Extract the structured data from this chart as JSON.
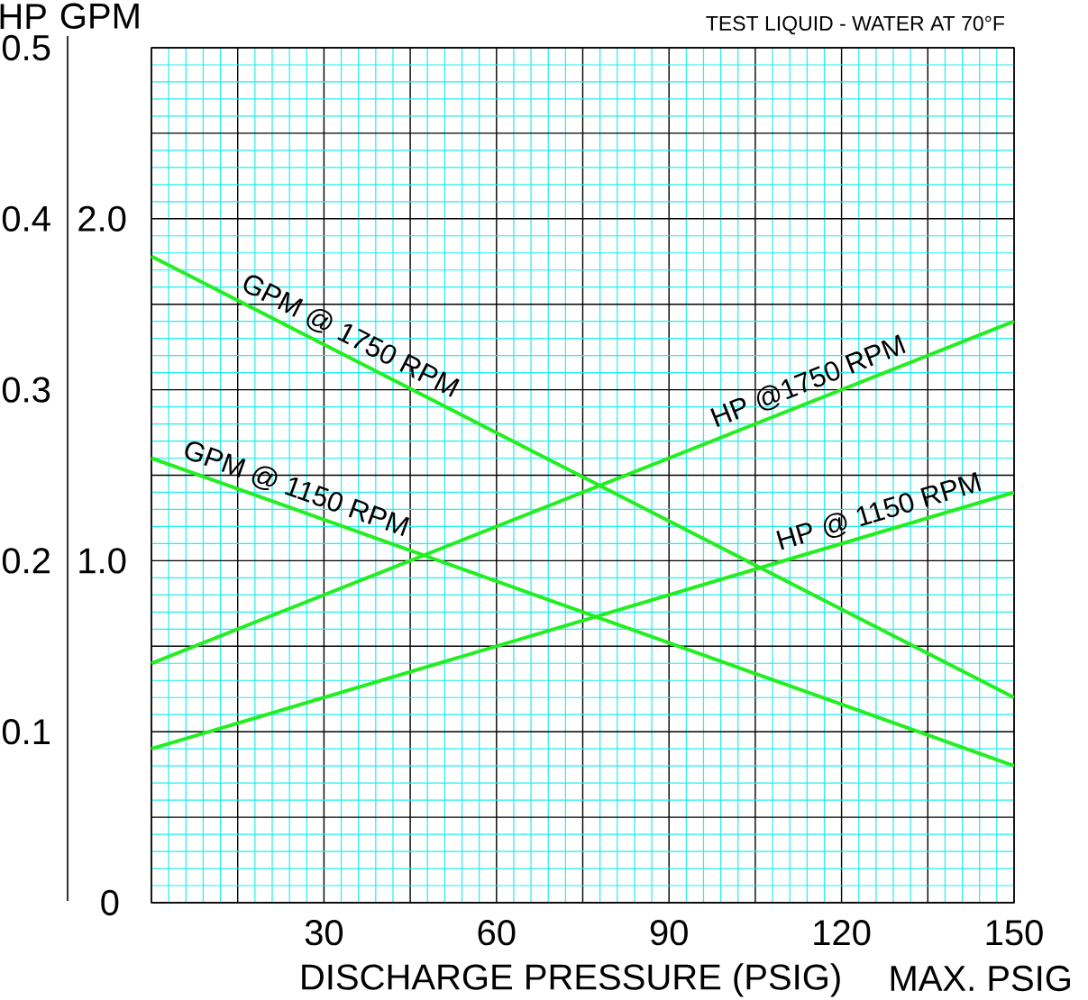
{
  "chart_data": {
    "type": "line",
    "xlabel": "DISCHARGE PRESSURE (PSIG)",
    "ylabel": "GPM",
    "y2label": "HP",
    "annotations": [
      "TEST LIQUID - WATER AT 70°F",
      "MAX. PSIG"
    ],
    "xlim": [
      0,
      150
    ],
    "ylim": [
      0,
      2.5
    ],
    "y2lim": [
      0,
      0.5
    ],
    "xticks": [
      {
        "value": 0,
        "label": null
      },
      {
        "value": 3,
        "label": null
      },
      {
        "value": 6,
        "label": null
      },
      {
        "value": 9,
        "label": null
      },
      {
        "value": 12,
        "label": null
      },
      {
        "value": 15,
        "label": null
      },
      {
        "value": 18,
        "label": null
      },
      {
        "value": 21,
        "label": null
      },
      {
        "value": 24,
        "label": null
      },
      {
        "value": 27,
        "label": null
      },
      30,
      {
        "value": 33,
        "label": null
      },
      {
        "value": 36,
        "label": null
      },
      {
        "value": 39,
        "label": null
      },
      {
        "value": 42,
        "label": null
      },
      {
        "value": 45,
        "label": null
      },
      {
        "value": 48,
        "label": null
      },
      {
        "value": 51,
        "label": null
      },
      {
        "value": 54,
        "label": null
      },
      {
        "value": 57,
        "label": null
      },
      60,
      {
        "value": 63,
        "label": null
      },
      {
        "value": 66,
        "label": null
      },
      {
        "value": 69,
        "label": null
      },
      {
        "value": 72,
        "label": null
      },
      {
        "value": 75,
        "label": null
      },
      {
        "value": 78,
        "label": null
      },
      {
        "value": 81,
        "label": null
      },
      {
        "value": 84,
        "label": null
      },
      {
        "value": 87,
        "label": null
      },
      90,
      {
        "value": 93,
        "label": null
      },
      {
        "value": 96,
        "label": null
      },
      {
        "value": 99,
        "label": null
      },
      {
        "value": 102,
        "label": null
      },
      {
        "value": 105,
        "label": null
      },
      {
        "value": 108,
        "label": null
      },
      {
        "value": 111,
        "label": null
      },
      {
        "value": 114,
        "label": null
      },
      {
        "value": 117,
        "label": null
      },
      120,
      {
        "value": 123,
        "label": null
      },
      {
        "value": 126,
        "label": null
      },
      {
        "value": 129,
        "label": null
      },
      {
        "value": 132,
        "label": null
      },
      {
        "value": 135,
        "label": null
      },
      {
        "value": 138,
        "label": null
      },
      {
        "value": 141,
        "label": null
      },
      {
        "value": 144,
        "label": null
      },
      {
        "value": 147,
        "label": null
      },
      150
    ],
    "x": [
      0,
      150
    ],
    "yticks": [
      0,
      {
        "value": 0.05,
        "label": null
      },
      {
        "value": 0.1,
        "label": null
      },
      {
        "value": 0.15,
        "label": null
      },
      {
        "value": 0.2,
        "label": null
      },
      {
        "value": 0.25,
        "label": null
      },
      {
        "value": 0.3,
        "label": null
      },
      {
        "value": 0.35,
        "label": null
      },
      {
        "value": 0.4,
        "label": null
      },
      {
        "value": 0.45,
        "label": null
      },
      {
        "value": 0.5,
        "label": null
      },
      {
        "value": 0.55,
        "label": null
      },
      {
        "value": 0.6,
        "label": null
      },
      {
        "value": 0.65,
        "label": null
      },
      {
        "value": 0.7,
        "label": null
      },
      {
        "value": 0.75,
        "label": null
      },
      {
        "value": 0.8,
        "label": null
      },
      {
        "value": 0.85,
        "label": null
      },
      {
        "value": 0.9,
        "label": null
      },
      {
        "value": 0.95,
        "label": null
      },
      {
        "value": 1.0,
        "label": "1.0"
      },
      {
        "value": 1.05,
        "label": null
      },
      {
        "value": 1.1,
        "label": null
      },
      {
        "value": 1.15,
        "label": null
      },
      {
        "value": 1.2,
        "label": null
      },
      {
        "value": 1.25,
        "label": null
      },
      {
        "value": 1.3,
        "label": null
      },
      {
        "value": 1.35,
        "label": null
      },
      {
        "value": 1.4,
        "label": null
      },
      {
        "value": 1.45,
        "label": null
      },
      {
        "value": 1.5,
        "label": null
      },
      {
        "value": 1.55,
        "label": null
      },
      {
        "value": 1.6,
        "label": null
      },
      {
        "value": 1.65,
        "label": null
      },
      {
        "value": 1.7,
        "label": null
      },
      {
        "value": 1.75,
        "label": null
      },
      {
        "value": 1.8,
        "label": null
      },
      {
        "value": 1.85,
        "label": null
      },
      {
        "value": 1.9,
        "label": null
      },
      {
        "value": 1.95,
        "label": null
      },
      {
        "value": 2.0,
        "label": "2.0"
      },
      {
        "value": 2.05,
        "label": null
      },
      {
        "value": 2.1,
        "label": null
      },
      {
        "value": 2.15,
        "label": null
      },
      {
        "value": 2.2,
        "label": null
      },
      {
        "value": 2.25,
        "label": null
      },
      {
        "value": 2.3,
        "label": null
      },
      {
        "value": 2.35,
        "label": null
      },
      {
        "value": 2.4,
        "label": null
      },
      {
        "value": 2.45,
        "label": null
      },
      {
        "value": 2.5,
        "label": null
      }
    ],
    "y2ticks": [
      0.1,
      0.2,
      0.3,
      0.4,
      0.5
    ],
    "grid": true,
    "line_style": "solid",
    "series": [
      {
        "name": "GPM @ 1750 RPM",
        "color": "#22ee22",
        "values": [
          1.89,
          0.6
        ]
      },
      {
        "name": "GPM @ 1150 RPM",
        "color": "#22ee22",
        "values": [
          1.3,
          0.4
        ]
      },
      {
        "name": "HP @1750 RPM",
        "color": "#22ee22",
        "axis": "y2",
        "values": [
          0.14,
          0.34
        ]
      },
      {
        "name": "HP @ 1150 RPM",
        "color": "#22ee22",
        "axis": "y2",
        "values": [
          0.09,
          0.24
        ]
      }
    ]
  }
}
